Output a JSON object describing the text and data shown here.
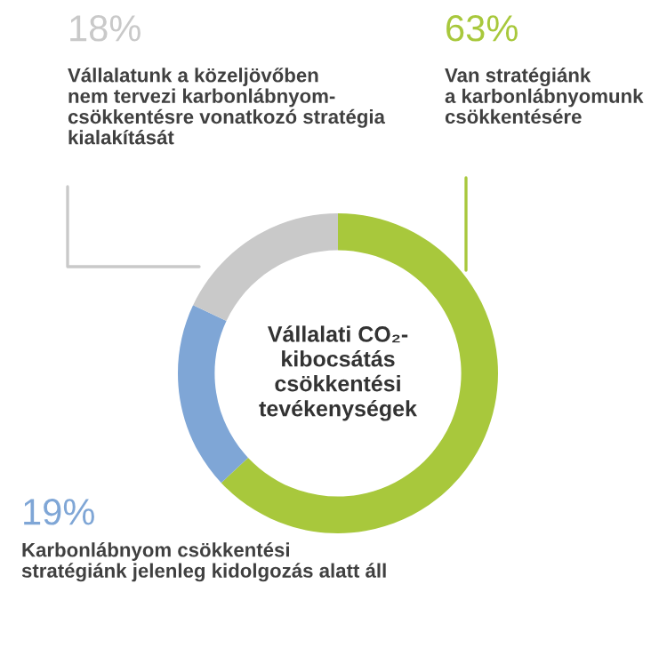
{
  "chart_data": {
    "type": "donut",
    "categories": [
      "Van stratégiánk\na karbonlábnyomunk\ncsökkentésére",
      "Karbonlábnyom csökkentési\nstratégiánk jelenleg kidolgozás alatt áll",
      "Vállalatunk a közeljövőben\nnem tervezi karbonlábnyom-\ncsökkentésre vonatkozó stratégia\nkialakítását"
    ],
    "values": [
      63,
      19,
      18
    ],
    "value_labels": [
      "63%",
      "19%",
      "18%"
    ],
    "colors": [
      "#a8c83c",
      "#7fa6d6",
      "#c9c9c9"
    ],
    "title": "Vállalati CO₂-\nkibocsátás\ncsökkentési\ntevékenységek",
    "legend": false
  }
}
